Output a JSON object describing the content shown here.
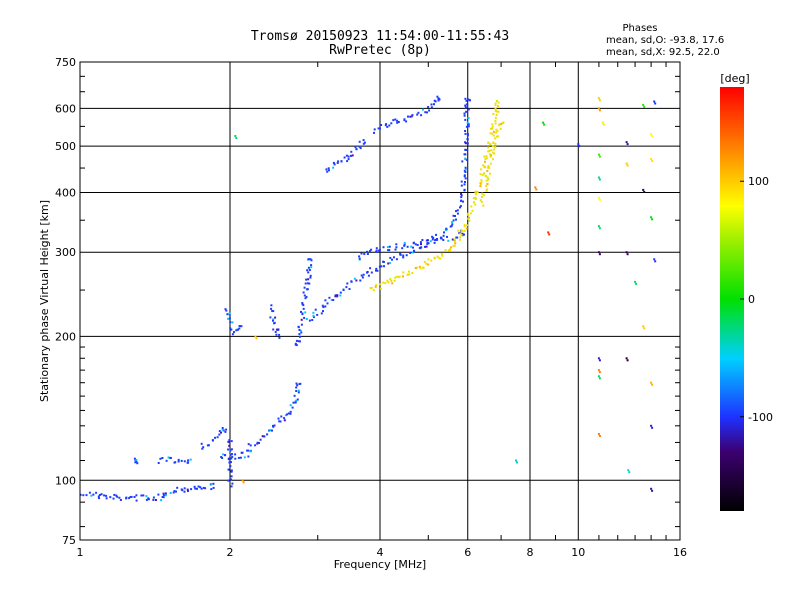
{
  "chart_data": {
    "type": "scatter",
    "title": "Tromsø 20150923 11:54:00-11:55:43",
    "subtitle": "RwPretec (8p)",
    "legend": {
      "title": "Phases",
      "line1": "mean, sd,O: -93.8, 17.6",
      "line2": "mean, sd,X:  92.5, 22.0"
    },
    "xlabel": "Frequency [MHz]",
    "ylabel": "Stationary phase Virtual Height [km]",
    "xscale": "log",
    "yscale": "log",
    "xlim": [
      1,
      16
    ],
    "ylim": [
      75,
      750
    ],
    "xticks": [
      1,
      2,
      4,
      6,
      8,
      10,
      16
    ],
    "xtick_labels": [
      "1",
      "2",
      "4",
      "6",
      "8",
      "10",
      "16"
    ],
    "yticks": [
      75,
      100,
      200,
      300,
      400,
      500,
      600,
      750
    ],
    "ytick_labels": [
      "75",
      "100",
      "200",
      "300",
      "400",
      "500",
      "600",
      "750"
    ],
    "grid": true,
    "colorbar": {
      "label": "[deg]",
      "range": [
        -180,
        180
      ],
      "ticks": [
        100,
        0,
        -100
      ],
      "tick_labels": [
        "100",
        "0",
        "-100"
      ]
    },
    "series": [
      {
        "mode": "O",
        "color_phase": -100,
        "color": "#1e3cff",
        "traces": [
          {
            "x": [
              1.0,
              1.08,
              1.15,
              1.25,
              1.35,
              1.45,
              1.48
            ],
            "y": [
              94,
              93,
              92,
              92,
              92,
              92,
              93
            ]
          },
          {
            "x": [
              1.5,
              1.6,
              1.7,
              1.8,
              1.85
            ],
            "y": [
              95,
              96,
              96,
              97,
              97
            ]
          },
          {
            "x": [
              1.3,
              1.3
            ],
            "y": [
              110,
              110
            ]
          },
          {
            "x": [
              1.45,
              1.5,
              1.55,
              1.6,
              1.65
            ],
            "y": [
              110,
              110,
              110,
              110,
              110
            ]
          },
          {
            "x": [
              1.75,
              1.8,
              1.85,
              1.9,
              1.95
            ],
            "y": [
              118,
              119,
              121,
              124,
              128
            ]
          },
          {
            "x": [
              1.9,
              2.0,
              2.05,
              2.1,
              2.2
            ],
            "y": [
              112,
              112,
              112,
              113,
              114
            ]
          },
          {
            "x": [
              1.96,
              2.0,
              2.05,
              2.1
            ],
            "y": [
              230,
              215,
              205,
              210
            ]
          },
          {
            "x": [
              2.0,
              2.0,
              2.0
            ],
            "y": [
              98,
              110,
              120
            ]
          },
          {
            "x": [
              2.2,
              2.3,
              2.4,
              2.5,
              2.6,
              2.7,
              2.75
            ],
            "y": [
              118,
              122,
              128,
              133,
              136,
              145,
              160
            ]
          },
          {
            "x": [
              2.4,
              2.45,
              2.5
            ],
            "y": [
              230,
              215,
              200
            ]
          },
          {
            "x": [
              2.7,
              2.75,
              2.8,
              2.85,
              2.9
            ],
            "y": [
              190,
              200,
              220,
              250,
              290
            ]
          },
          {
            "x": [
              2.85,
              2.95,
              3.1,
              3.3,
              3.5,
              3.8,
              4.1,
              4.5,
              4.9,
              5.3,
              5.6,
              5.8,
              5.9,
              5.95,
              6.0
            ],
            "y": [
              215,
              220,
              232,
              245,
              258,
              272,
              285,
              298,
              310,
              325,
              345,
              375,
              430,
              520,
              630
            ]
          },
          {
            "x": [
              3.6,
              3.8,
              4.0,
              4.3,
              4.6,
              5.0,
              5.5,
              5.9
            ],
            "y": [
              290,
              300,
              305,
              308,
              310,
              315,
              320,
              330
            ]
          },
          {
            "x": [
              3.1,
              3.3,
              3.5,
              3.7
            ],
            "y": [
              440,
              460,
              480,
              510
            ]
          },
          {
            "x": [
              3.9,
              4.2,
              4.6,
              5.0,
              5.3
            ],
            "y": [
              540,
              560,
              575,
              600,
              630
            ]
          }
        ]
      },
      {
        "mode": "X",
        "color_phase": 100,
        "color": "#f0e000",
        "traces": [
          {
            "x": [
              3.8,
              4.1,
              4.4,
              4.7,
              5.0,
              5.3,
              5.6,
              5.8
            ],
            "y": [
              250,
              258,
              268,
              275,
              285,
              295,
              310,
              330
            ]
          },
          {
            "x": [
              5.9,
              6.1,
              6.3,
              6.5,
              6.7,
              6.9
            ],
            "y": [
              330,
              370,
              410,
              460,
              520,
              620
            ]
          },
          {
            "x": [
              6.4,
              6.6,
              6.8,
              7.0
            ],
            "y": [
              380,
              440,
              500,
              560
            ]
          }
        ]
      },
      {
        "mode": "scattered",
        "color": "mixed",
        "points": [
          {
            "x": 2.05,
            "y": 525,
            "phase": -20
          },
          {
            "x": 2.12,
            "y": 100,
            "phase": 140
          },
          {
            "x": 2.25,
            "y": 200,
            "phase": 120
          },
          {
            "x": 7.5,
            "y": 110,
            "phase": -40
          },
          {
            "x": 8.2,
            "y": 410,
            "phase": 150
          },
          {
            "x": 8.5,
            "y": 560,
            "phase": 0
          },
          {
            "x": 8.7,
            "y": 330,
            "phase": 170
          },
          {
            "x": 10.0,
            "y": 505,
            "phase": -100
          },
          {
            "x": 11.0,
            "y": 630,
            "phase": 120
          },
          {
            "x": 11.0,
            "y": 600,
            "phase": 140
          },
          {
            "x": 11.0,
            "y": 480,
            "phase": 20
          },
          {
            "x": 11.0,
            "y": 430,
            "phase": -30
          },
          {
            "x": 11.0,
            "y": 390,
            "phase": 100
          },
          {
            "x": 11.0,
            "y": 340,
            "phase": -20
          },
          {
            "x": 11.0,
            "y": 300,
            "phase": -130
          },
          {
            "x": 11.0,
            "y": 180,
            "phase": -110
          },
          {
            "x": 11.0,
            "y": 170,
            "phase": 150
          },
          {
            "x": 11.0,
            "y": 165,
            "phase": -20
          },
          {
            "x": 11.0,
            "y": 125,
            "phase": 150
          },
          {
            "x": 11.2,
            "y": 560,
            "phase": 110
          },
          {
            "x": 12.5,
            "y": 510,
            "phase": -120
          },
          {
            "x": 12.5,
            "y": 460,
            "phase": 120
          },
          {
            "x": 12.5,
            "y": 300,
            "phase": -140
          },
          {
            "x": 12.5,
            "y": 180,
            "phase": -150
          },
          {
            "x": 12.6,
            "y": 105,
            "phase": -40
          },
          {
            "x": 13.0,
            "y": 260,
            "phase": -20
          },
          {
            "x": 13.5,
            "y": 610,
            "phase": 10
          },
          {
            "x": 13.5,
            "y": 405,
            "phase": -150
          },
          {
            "x": 13.5,
            "y": 210,
            "phase": 120
          },
          {
            "x": 14.0,
            "y": 530,
            "phase": 100
          },
          {
            "x": 14.0,
            "y": 470,
            "phase": 110
          },
          {
            "x": 14.0,
            "y": 355,
            "phase": 0
          },
          {
            "x": 14.0,
            "y": 160,
            "phase": 130
          },
          {
            "x": 14.0,
            "y": 130,
            "phase": -110
          },
          {
            "x": 14.2,
            "y": 620,
            "phase": -100
          },
          {
            "x": 14.2,
            "y": 290,
            "phase": -100
          },
          {
            "x": 14.0,
            "y": 96,
            "phase": -120
          }
        ]
      }
    ]
  }
}
